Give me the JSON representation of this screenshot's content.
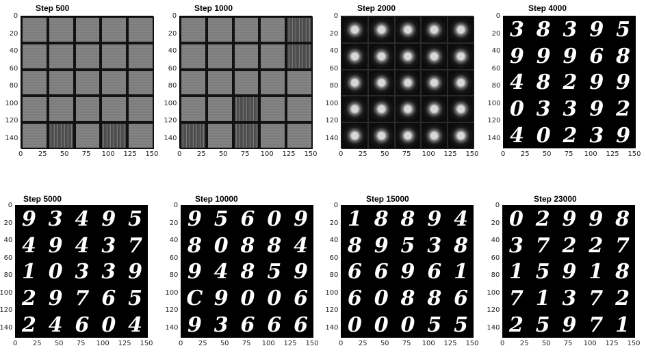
{
  "figure": {
    "axis_ticks_x": [
      "0",
      "25",
      "50",
      "75",
      "100",
      "125",
      "150"
    ],
    "axis_ticks_y": [
      "0",
      "20",
      "40",
      "60",
      "80",
      "100",
      "120",
      "140"
    ]
  },
  "panels": [
    {
      "title": "Step 500",
      "style": "noise",
      "digits": []
    },
    {
      "title": "Step 1000",
      "style": "noise2",
      "digits": []
    },
    {
      "title": "Step 2000",
      "style": "blob",
      "digits": []
    },
    {
      "title": "Step 4000",
      "style": "digit",
      "digits": [
        "3",
        "8",
        "3",
        "9",
        "5",
        "9",
        "9",
        "9",
        "6",
        "8",
        "4",
        "8",
        "2",
        "9",
        "9",
        "0",
        "3",
        "3",
        "9",
        "2",
        "4",
        "0",
        "2",
        "3",
        "9"
      ]
    },
    {
      "title": "Step 5000",
      "style": "digit",
      "digits": [
        "9",
        "3",
        "4",
        "9",
        "5",
        "4",
        "9",
        "4",
        "3",
        "7",
        "1",
        "0",
        "3",
        "3",
        "9",
        "2",
        "9",
        "7",
        "6",
        "5",
        "2",
        "4",
        "6",
        "0",
        "4"
      ]
    },
    {
      "title": "Step 10000",
      "style": "digit",
      "digits": [
        "9",
        "5",
        "6",
        "0",
        "9",
        "8",
        "0",
        "8",
        "8",
        "4",
        "9",
        "4",
        "8",
        "5",
        "9",
        "C",
        "9",
        "0",
        "0",
        "6",
        "9",
        "3",
        "6",
        "6",
        "6"
      ]
    },
    {
      "title": "Step 15000",
      "style": "digit",
      "digits": [
        "1",
        "8",
        "8",
        "9",
        "4",
        "8",
        "9",
        "5",
        "3",
        "8",
        "6",
        "6",
        "9",
        "6",
        "1",
        "6",
        "0",
        "8",
        "8",
        "6",
        "0",
        "0",
        "0",
        "5",
        "5"
      ]
    },
    {
      "title": "Step 23000",
      "style": "digit",
      "digits": [
        "0",
        "2",
        "9",
        "9",
        "8",
        "3",
        "7",
        "2",
        "2",
        "7",
        "1",
        "5",
        "9",
        "1",
        "8",
        "7",
        "1",
        "3",
        "7",
        "2",
        "2",
        "5",
        "9",
        "7",
        "1"
      ]
    }
  ]
}
